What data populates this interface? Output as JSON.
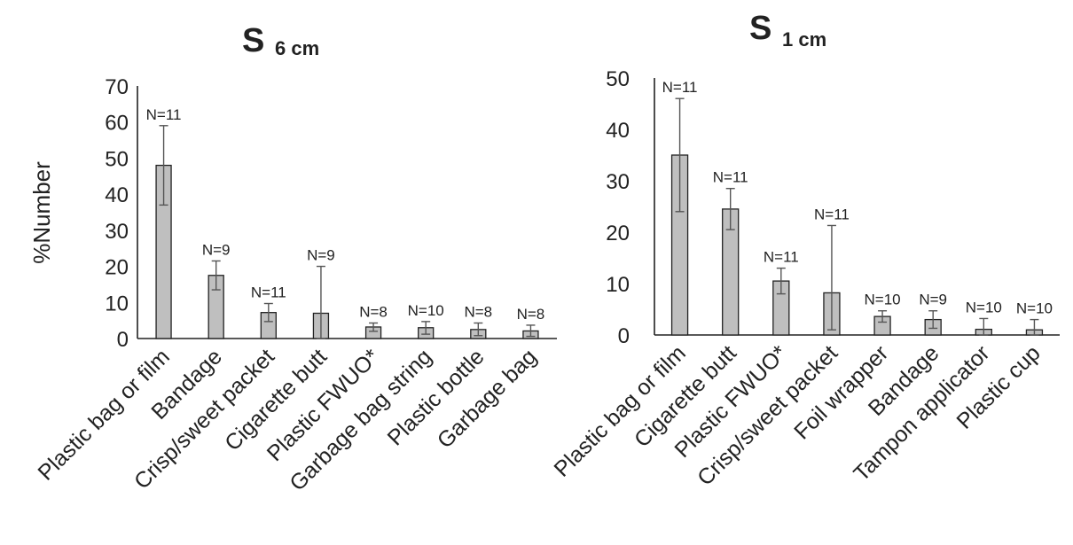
{
  "chart_data": [
    {
      "type": "bar",
      "title": "S",
      "title_subscript": "6 cm",
      "ylabel": "%Number",
      "ylim": [
        0,
        70
      ],
      "yticks": [
        "0",
        "10",
        "20",
        "30",
        "40",
        "50",
        "60",
        "70"
      ],
      "categories": [
        "Plastic bag or film",
        "Bandage",
        "Crisp/sweet packet",
        "Cigarette butt",
        "Plastic FWUO*",
        "Garbage bag string",
        "Plastic bottle",
        "Garbage bag"
      ],
      "values": [
        48,
        17.5,
        7.2,
        7,
        3.2,
        3,
        2.5,
        2.1
      ],
      "error_low": [
        37,
        13.5,
        4.7,
        0,
        2,
        1.2,
        0.8,
        0.6
      ],
      "error_high": [
        59,
        21.5,
        9.7,
        20,
        4.3,
        4.7,
        4.3,
        3.7
      ],
      "n_labels": [
        "N=11",
        "N=9",
        "N=11",
        "N=9",
        "N=8",
        "N=10",
        "N=8",
        "N=8"
      ],
      "bar_color": "#bfbfbf"
    },
    {
      "type": "bar",
      "title": "S",
      "title_subscript": "1 cm",
      "ylabel": "",
      "ylim": [
        0,
        50
      ],
      "yticks": [
        "0",
        "10",
        "20",
        "30",
        "40",
        "50"
      ],
      "categories": [
        "Plastic bag or film",
        "Cigarette butt",
        "Plastic FWUO*",
        "Crisp/sweet packet",
        "Foil wrapper",
        "Bandage",
        "Tampon applicator",
        "Plastic cup"
      ],
      "values": [
        35,
        24.5,
        10.5,
        8.2,
        3.6,
        3,
        1.1,
        1
      ],
      "error_low": [
        24,
        20.5,
        8,
        1,
        2.5,
        1.3,
        0,
        0
      ],
      "error_high": [
        46,
        28.5,
        13,
        21.3,
        4.7,
        4.7,
        3.2,
        3
      ],
      "n_labels": [
        "N=11",
        "N=11",
        "N=11",
        "N=11",
        "N=10",
        "N=9",
        "N=10",
        "N=10"
      ],
      "bar_color": "#bfbfbf"
    }
  ]
}
